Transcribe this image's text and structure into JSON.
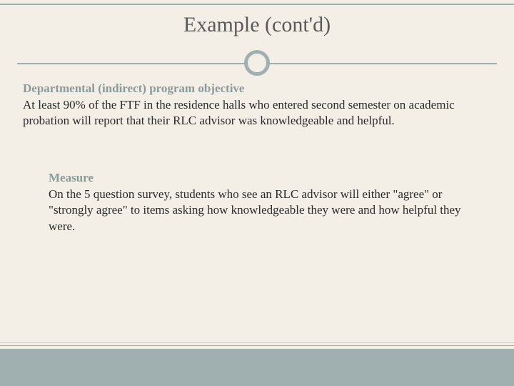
{
  "slide": {
    "title": "Example (cont'd)",
    "section1": {
      "heading": "Departmental (indirect) program objective",
      "body": "At least 90% of the FTF in the residence halls who entered second semester on academic probation will report that their RLC advisor was knowledgeable and helpful."
    },
    "section2": {
      "heading": "Measure",
      "body": "On the 5 question survey, students who see an RLC advisor will either \"agree\" or \"strongly agree\" to items asking how knowledgeable they were and how helpful they were."
    }
  },
  "colors": {
    "background": "#f3efe7",
    "accent": "#a0b0b0",
    "heading": "#8a9a9a",
    "title": "#5a5a5a",
    "body": "#2a2a2a"
  }
}
